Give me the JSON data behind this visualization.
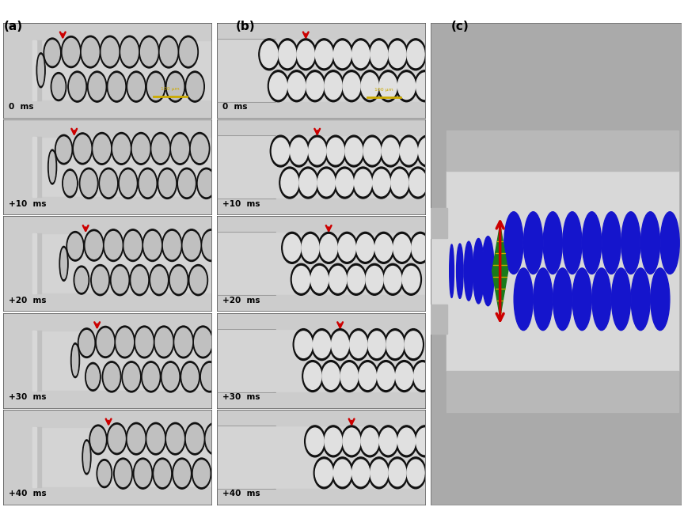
{
  "fig_width": 8.64,
  "fig_height": 6.41,
  "outer_bg": "#aaaaaa",
  "panel_outer": "#aaaaaa",
  "channel_light": "#cccccc",
  "wall_gray": "#aaaaaa",
  "droplet_border": "#111111",
  "droplet_fill_a": "#c0c0c0",
  "droplet_fill_b": "#e0e0e0",
  "blue": "#1515cc",
  "green_diamond": "#1a7a1a",
  "gold": "#ccaa00",
  "red": "#cc0000",
  "text_color": "#111111",
  "time_labels": [
    "0  ms",
    "+10  ms",
    "+20  ms",
    "+30  ms",
    "+40  ms"
  ],
  "label_a": "(a)",
  "label_b": "(b)",
  "label_c": "(c)"
}
